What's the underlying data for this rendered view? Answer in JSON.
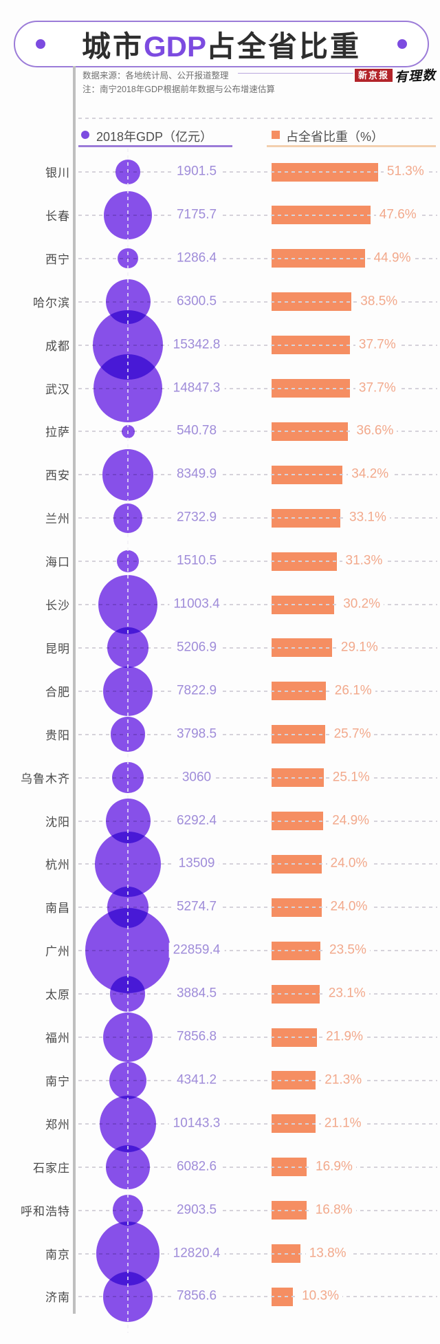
{
  "title": {
    "prefix": "城市",
    "highlight": "GDP",
    "suffix": "占全省比重"
  },
  "notes": {
    "source": "数据来源：各地统计局、公开报道整理",
    "remark": "注：南宁2018年GDP根据前年数据与公布增速估算"
  },
  "branding": {
    "press_badge": "新京报",
    "logo_text": "有理数"
  },
  "legend": {
    "gdp_label": "2018年GDP（亿元）",
    "share_label": "占全省比重（%）"
  },
  "colors": {
    "accent_purple": "#7c4be0",
    "banner_border": "#9b7bd8",
    "bubble": "#8850eb",
    "bar": "#f58e62",
    "gdp_text": "#9f8cd9",
    "pct_text": "#f2a98c",
    "badge_red": "#b3242a"
  },
  "chart_data": {
    "type": "bubble-bar",
    "title": "城市GDP占全省比重",
    "series": [
      {
        "name": "2018年GDP（亿元）",
        "encoding": "bubble-area"
      },
      {
        "name": "占全省比重（%）",
        "encoding": "bar-length"
      }
    ],
    "share_axis_range": [
      0,
      55
    ],
    "cities": [
      {
        "name": "银川",
        "gdp": 1901.5,
        "gdp_label": "1901.5",
        "share": 51.3,
        "share_label": "51.3%"
      },
      {
        "name": "长春",
        "gdp": 7175.7,
        "gdp_label": "7175.7",
        "share": 47.6,
        "share_label": "47.6%"
      },
      {
        "name": "西宁",
        "gdp": 1286.4,
        "gdp_label": "1286.4",
        "share": 44.9,
        "share_label": "44.9%"
      },
      {
        "name": "哈尔滨",
        "gdp": 6300.5,
        "gdp_label": "6300.5",
        "share": 38.5,
        "share_label": "38.5%"
      },
      {
        "name": "成都",
        "gdp": 15342.8,
        "gdp_label": "15342.8",
        "share": 37.7,
        "share_label": "37.7%"
      },
      {
        "name": "武汉",
        "gdp": 14847.3,
        "gdp_label": "14847.3",
        "share": 37.7,
        "share_label": "37.7%"
      },
      {
        "name": "拉萨",
        "gdp": 540.78,
        "gdp_label": "540.78",
        "share": 36.6,
        "share_label": "36.6%"
      },
      {
        "name": "西安",
        "gdp": 8349.9,
        "gdp_label": "8349.9",
        "share": 34.2,
        "share_label": "34.2%"
      },
      {
        "name": "兰州",
        "gdp": 2732.9,
        "gdp_label": "2732.9",
        "share": 33.1,
        "share_label": "33.1%"
      },
      {
        "name": "海口",
        "gdp": 1510.5,
        "gdp_label": "1510.5",
        "share": 31.3,
        "share_label": "31.3%"
      },
      {
        "name": "长沙",
        "gdp": 11003.4,
        "gdp_label": "11003.4",
        "share": 30.2,
        "share_label": "30.2%"
      },
      {
        "name": "昆明",
        "gdp": 5206.9,
        "gdp_label": "5206.9",
        "share": 29.1,
        "share_label": "29.1%"
      },
      {
        "name": "合肥",
        "gdp": 7822.9,
        "gdp_label": "7822.9",
        "share": 26.1,
        "share_label": "26.1%"
      },
      {
        "name": "贵阳",
        "gdp": 3798.5,
        "gdp_label": "3798.5",
        "share": 25.7,
        "share_label": "25.7%"
      },
      {
        "name": "乌鲁木齐",
        "gdp": 3060,
        "gdp_label": "3060",
        "share": 25.1,
        "share_label": "25.1%"
      },
      {
        "name": "沈阳",
        "gdp": 6292.4,
        "gdp_label": "6292.4",
        "share": 24.9,
        "share_label": "24.9%"
      },
      {
        "name": "杭州",
        "gdp": 13509,
        "gdp_label": "13509",
        "share": 24.0,
        "share_label": "24.0%"
      },
      {
        "name": "南昌",
        "gdp": 5274.7,
        "gdp_label": "5274.7",
        "share": 24.0,
        "share_label": "24.0%"
      },
      {
        "name": "广州",
        "gdp": 22859.4,
        "gdp_label": "22859.4",
        "share": 23.5,
        "share_label": "23.5%"
      },
      {
        "name": "太原",
        "gdp": 3884.5,
        "gdp_label": "3884.5",
        "share": 23.1,
        "share_label": "23.1%"
      },
      {
        "name": "福州",
        "gdp": 7856.8,
        "gdp_label": "7856.8",
        "share": 21.9,
        "share_label": "21.9%"
      },
      {
        "name": "南宁",
        "gdp": 4341.2,
        "gdp_label": "4341.2",
        "share": 21.3,
        "share_label": "21.3%"
      },
      {
        "name": "郑州",
        "gdp": 10143.3,
        "gdp_label": "10143.3",
        "share": 21.1,
        "share_label": "21.1%"
      },
      {
        "name": "石家庄",
        "gdp": 6082.6,
        "gdp_label": "6082.6",
        "share": 16.9,
        "share_label": "16.9%"
      },
      {
        "name": "呼和浩特",
        "gdp": 2903.5,
        "gdp_label": "2903.5",
        "share": 16.8,
        "share_label": "16.8%"
      },
      {
        "name": "南京",
        "gdp": 12820.4,
        "gdp_label": "12820.4",
        "share": 13.8,
        "share_label": "13.8%"
      },
      {
        "name": "济南",
        "gdp": 7856.6,
        "gdp_label": "7856.6",
        "share": 10.3,
        "share_label": "10.3%"
      }
    ]
  }
}
